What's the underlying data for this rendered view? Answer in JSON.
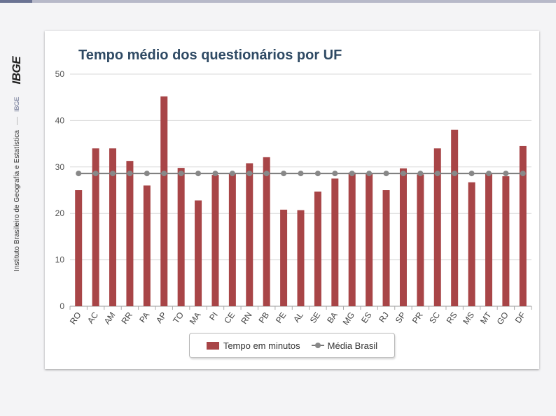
{
  "branding": {
    "institute": "Instituto Brasileiro de Geografia e Estatística",
    "short": "IBGE",
    "logo": "IBGE"
  },
  "colors": {
    "bar": "#a84547",
    "average_line": "#7a7a7a",
    "average_marker": "#888888",
    "title": "#2f4a64",
    "grid": "#d8d8d8"
  },
  "chart_data": {
    "type": "bar",
    "title": "Tempo médio dos questionários por UF",
    "xlabel": "",
    "ylabel": "",
    "ylim": [
      0,
      50
    ],
    "yticks": [
      0,
      10,
      20,
      30,
      40,
      50
    ],
    "grid": true,
    "legend_position": "bottom-center",
    "categories": [
      "RO",
      "AC",
      "AM",
      "RR",
      "PA",
      "AP",
      "TO",
      "MA",
      "PI",
      "CE",
      "RN",
      "PB",
      "PE",
      "AL",
      "SE",
      "BA",
      "MG",
      "ES",
      "RJ",
      "SP",
      "PR",
      "SC",
      "RS",
      "MS",
      "MT",
      "GO",
      "DF"
    ],
    "series": [
      {
        "name": "Tempo em minutos",
        "type": "bar",
        "values": [
          25.0,
          34.0,
          34.0,
          31.3,
          26.0,
          45.2,
          29.8,
          22.8,
          28.3,
          28.5,
          30.8,
          32.1,
          20.8,
          20.7,
          24.7,
          27.5,
          28.8,
          28.6,
          25.0,
          29.7,
          28.4,
          34.0,
          38.0,
          26.7,
          28.7,
          28.0,
          34.5
        ]
      },
      {
        "name": "Média Brasil",
        "type": "line",
        "values": [
          28.6,
          28.6,
          28.6,
          28.6,
          28.6,
          28.6,
          28.6,
          28.6,
          28.6,
          28.6,
          28.6,
          28.6,
          28.6,
          28.6,
          28.6,
          28.6,
          28.6,
          28.6,
          28.6,
          28.6,
          28.6,
          28.6,
          28.6,
          28.6,
          28.6,
          28.6,
          28.6
        ]
      }
    ]
  },
  "legend": {
    "bar_label": "Tempo em minutos",
    "line_label": "Média Brasil"
  }
}
